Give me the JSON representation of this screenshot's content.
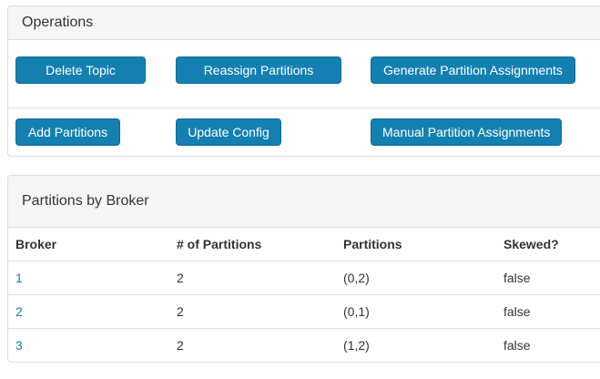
{
  "colors": {
    "accent": "#1480b2",
    "panel_border": "#dddddd",
    "heading_background": "#f5f5f5",
    "text": "#333333",
    "button_text": "#ffffff"
  },
  "operations": {
    "title": "Operations",
    "rows": [
      [
        {
          "label": "Delete Topic"
        },
        {
          "label": "Reassign Partitions"
        },
        {
          "label": "Generate Partition Assignments"
        }
      ],
      [
        {
          "label": "Add Partitions"
        },
        {
          "label": "Update Config"
        },
        {
          "label": "Manual Partition Assignments"
        }
      ]
    ]
  },
  "partitions_by_broker": {
    "title": "Partitions by Broker",
    "headers": [
      "Broker",
      "# of Partitions",
      "Partitions",
      "Skewed?"
    ],
    "rows": [
      {
        "broker": "1",
        "num_partitions": "2",
        "partitions": "(0,2)",
        "skewed": "false"
      },
      {
        "broker": "2",
        "num_partitions": "2",
        "partitions": "(0,1)",
        "skewed": "false"
      },
      {
        "broker": "3",
        "num_partitions": "2",
        "partitions": "(1,2)",
        "skewed": "false"
      }
    ]
  }
}
